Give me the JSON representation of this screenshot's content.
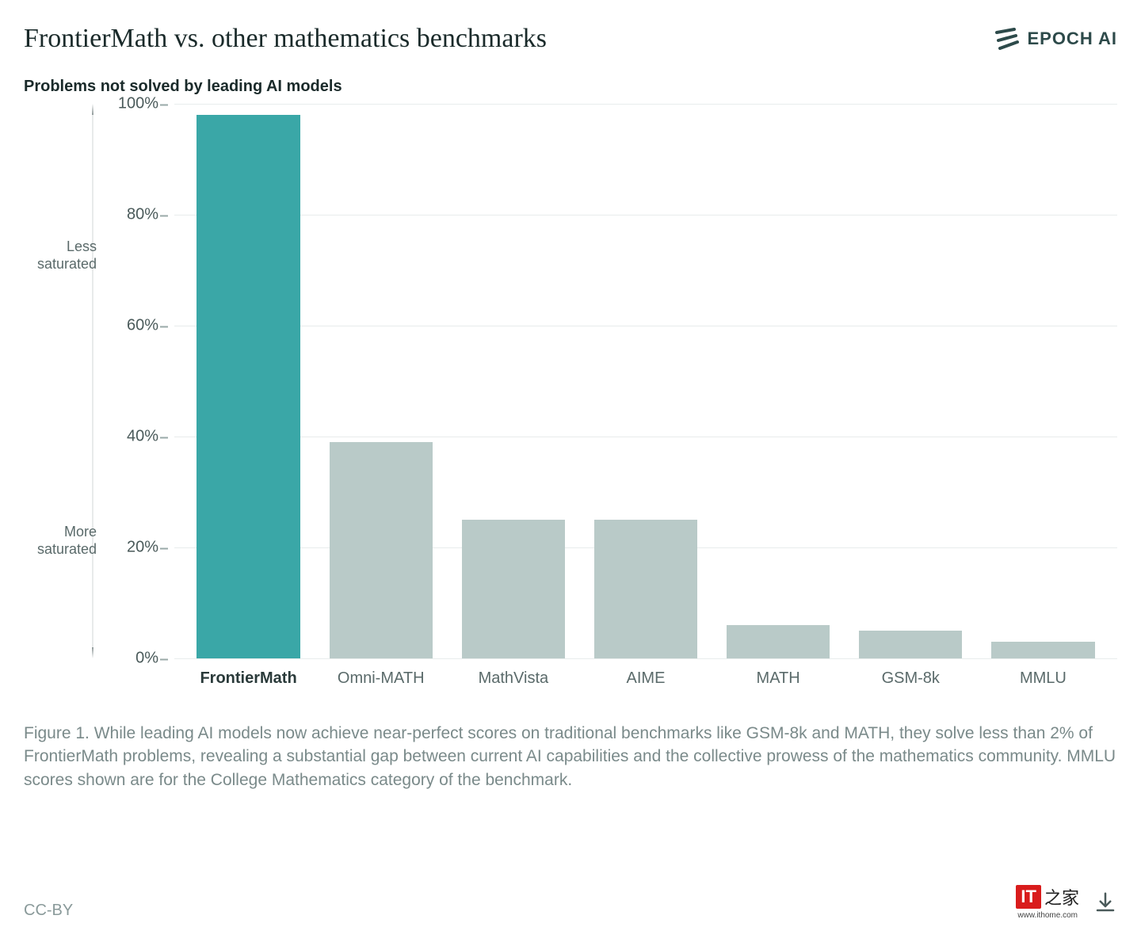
{
  "title": "FrontierMath vs. other mathematics benchmarks",
  "logo": {
    "text": "EPOCH AI",
    "color": "#2d4a4a"
  },
  "subtitle": "Problems not solved by leading AI models",
  "chart": {
    "type": "bar",
    "ylabel_top": "Less\nsaturated",
    "ylabel_bottom": "More\nsaturated",
    "ylim": [
      0,
      100
    ],
    "yticks": [
      0,
      20,
      40,
      60,
      80,
      100
    ],
    "ytick_labels": [
      "0%",
      "20%",
      "40%",
      "60%",
      "80%",
      "100%"
    ],
    "grid_color": "#e8ecec",
    "axis_color": "#9aaaa8",
    "background_color": "#ffffff",
    "bar_width": 0.78,
    "categories": [
      "FrontierMath",
      "Omni-MATH",
      "MathVista",
      "AIME",
      "MATH",
      "GSM-8k",
      "MMLU"
    ],
    "values": [
      98,
      39,
      25,
      25,
      6,
      5,
      3
    ],
    "bar_colors": [
      "#3aa7a7",
      "#b9cac8",
      "#b9cac8",
      "#b9cac8",
      "#b9cac8",
      "#b9cac8",
      "#b9cac8"
    ],
    "highlight_index": 0,
    "label_fontsize": 20,
    "title_fontsize": 34
  },
  "caption": "Figure 1. While leading AI models now achieve near-perfect scores on traditional benchmarks like GSM-8k and MATH, they solve less than 2% of FrontierMath problems, revealing a substantial gap between current AI capabilities and the collective prowess of the mathematics community. MMLU scores shown are for the College Mathematics category of the benchmark.",
  "license": "CC-BY",
  "watermark": {
    "badge": "IT",
    "glyph": "之家",
    "url": "www.ithome.com"
  }
}
